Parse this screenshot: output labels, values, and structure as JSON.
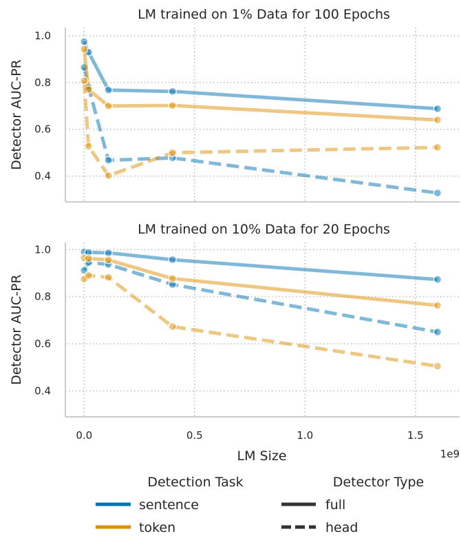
{
  "chart_data": [
    {
      "type": "line",
      "title": "LM trained on 1% Data for 100 Epochs",
      "xlabel": "",
      "ylabel": "Detector AUC-PR",
      "xlim": [
        -85000000,
        1700000000
      ],
      "ylim": [
        0.29,
        1.035
      ],
      "x_ticks": [
        0,
        500000000,
        1000000000,
        1500000000
      ],
      "y_ticks": [
        0.4,
        0.6,
        0.8,
        1.0
      ],
      "y_tick_labels": [
        "0.4",
        "0.6",
        "0.8",
        "1.0"
      ],
      "grid": true,
      "series": [
        {
          "task": "sentence",
          "detector": "full",
          "x": [
            0,
            20000000,
            110000000,
            400000000,
            1600000000
          ],
          "values": [
            0.975,
            0.93,
            0.768,
            0.762,
            0.688
          ]
        },
        {
          "task": "sentence",
          "detector": "head",
          "x": [
            0,
            20000000,
            110000000,
            400000000,
            1600000000
          ],
          "values": [
            0.865,
            0.78,
            0.468,
            0.478,
            0.328
          ]
        },
        {
          "task": "token",
          "detector": "full",
          "x": [
            0,
            20000000,
            110000000,
            400000000,
            1600000000
          ],
          "values": [
            0.943,
            0.77,
            0.7,
            0.702,
            0.64
          ]
        },
        {
          "task": "token",
          "detector": "head",
          "x": [
            0,
            20000000,
            110000000,
            400000000,
            1600000000
          ],
          "values": [
            0.808,
            0.528,
            0.402,
            0.5,
            0.523
          ]
        }
      ]
    },
    {
      "type": "line",
      "title": "LM trained on 10% Data for 20 Epochs",
      "xlabel": "LM Size",
      "ylabel": "Detector AUC-PR",
      "x_offset_label": "1e9",
      "xlim": [
        -85000000,
        1700000000
      ],
      "ylim": [
        0.29,
        1.03
      ],
      "x_ticks": [
        0,
        500000000,
        1000000000,
        1500000000
      ],
      "x_tick_labels": [
        "0.0",
        "0.5",
        "1.0",
        "1.5"
      ],
      "y_ticks": [
        0.4,
        0.6,
        0.8,
        1.0
      ],
      "y_tick_labels": [
        "0.4",
        "0.6",
        "0.8",
        "1.0"
      ],
      "grid": true,
      "series": [
        {
          "task": "sentence",
          "detector": "full",
          "x": [
            0,
            20000000,
            110000000,
            400000000,
            1600000000
          ],
          "values": [
            0.99,
            0.988,
            0.986,
            0.957,
            0.873
          ]
        },
        {
          "task": "sentence",
          "detector": "head",
          "x": [
            0,
            20000000,
            110000000,
            400000000,
            1600000000
          ],
          "values": [
            0.912,
            0.945,
            0.937,
            0.852,
            0.65
          ]
        },
        {
          "task": "token",
          "detector": "full",
          "x": [
            0,
            20000000,
            110000000,
            400000000,
            1600000000
          ],
          "values": [
            0.965,
            0.962,
            0.956,
            0.877,
            0.763
          ]
        },
        {
          "task": "token",
          "detector": "head",
          "x": [
            0,
            20000000,
            110000000,
            400000000,
            1600000000
          ],
          "values": [
            0.875,
            0.89,
            0.882,
            0.673,
            0.505
          ]
        }
      ]
    }
  ],
  "legend": {
    "placement": "bottom",
    "task_title": "Detection Task",
    "task_items": [
      {
        "label": "sentence",
        "color": "#0173b2"
      },
      {
        "label": "token",
        "color": "#de8f05"
      }
    ],
    "type_title": "Detector Type",
    "type_items": [
      {
        "label": "full",
        "style": "solid"
      },
      {
        "label": "head",
        "style": "dashed"
      }
    ]
  },
  "colors": {
    "sentence": "#0173b2",
    "token": "#de8f05",
    "grid": "#bdbdbd",
    "axis": "#cccccc",
    "text": "#262626"
  }
}
